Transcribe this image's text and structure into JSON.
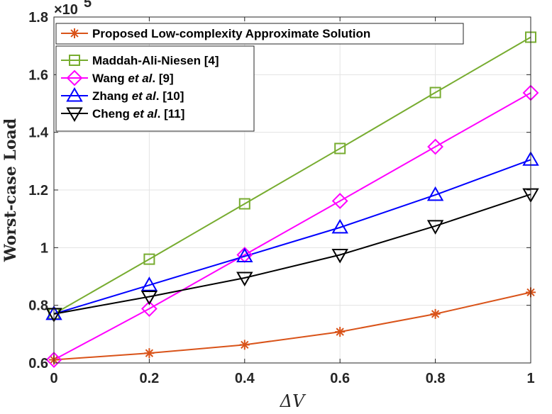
{
  "chart_data": {
    "type": "line",
    "title": "",
    "xlabel": "ΔV",
    "ylabel": "Worst-case Load",
    "y_multiplier": "×10",
    "y_multiplier_exp": "5",
    "x": [
      0,
      0.2,
      0.4,
      0.6,
      0.8,
      1
    ],
    "x_tick_labels": [
      "0",
      "0.2",
      "0.4",
      "0.6",
      "0.8",
      "1"
    ],
    "y_tick_values": [
      0.6,
      0.8,
      1.0,
      1.2,
      1.4,
      1.6,
      1.8
    ],
    "y_tick_labels": [
      "0.6",
      "0.8",
      "1",
      "1.2",
      "1.4",
      "1.6",
      "1.8"
    ],
    "xlim": [
      0,
      1
    ],
    "ylim": [
      0.6,
      1.8
    ],
    "grid": true,
    "legend_position": "top-left",
    "series": [
      {
        "name": "Proposed Low-complexity Approximate Solution",
        "name_parts": [
          {
            "text": "Proposed Low-complexity Approximate Solution",
            "italic": false
          }
        ],
        "color": "#D95319",
        "marker": "star",
        "values": [
          0.611,
          0.634,
          0.663,
          0.708,
          0.77,
          0.845
        ]
      },
      {
        "name": "Maddah-Ali-Niesen [4]",
        "name_parts": [
          {
            "text": "Maddah-Ali-Niesen [4]",
            "italic": false
          }
        ],
        "color": "#77AC30",
        "marker": "square",
        "values": [
          0.77,
          0.96,
          1.152,
          1.344,
          1.538,
          1.73
        ]
      },
      {
        "name": "Wang et al. [9]",
        "name_parts": [
          {
            "text": "Wang ",
            "italic": false
          },
          {
            "text": "et al",
            "italic": true
          },
          {
            "text": ". [9]",
            "italic": false
          }
        ],
        "color": "#FF00FF",
        "marker": "diamond",
        "values": [
          0.611,
          0.788,
          0.975,
          1.162,
          1.35,
          1.537
        ]
      },
      {
        "name": "Zhang et al. [10]",
        "name_parts": [
          {
            "text": "Zhang ",
            "italic": false
          },
          {
            "text": "et al",
            "italic": true
          },
          {
            "text": ". [10]",
            "italic": false
          }
        ],
        "color": "#0000FF",
        "marker": "triangle-up",
        "values": [
          0.77,
          0.87,
          0.97,
          1.07,
          1.183,
          1.305
        ]
      },
      {
        "name": "Cheng et al. [11]",
        "name_parts": [
          {
            "text": "Cheng ",
            "italic": false
          },
          {
            "text": "et al",
            "italic": true
          },
          {
            "text": ". [11]",
            "italic": false
          }
        ],
        "color": "#000000",
        "marker": "triangle-down",
        "values": [
          0.77,
          0.83,
          0.895,
          0.975,
          1.075,
          1.185
        ]
      }
    ]
  }
}
